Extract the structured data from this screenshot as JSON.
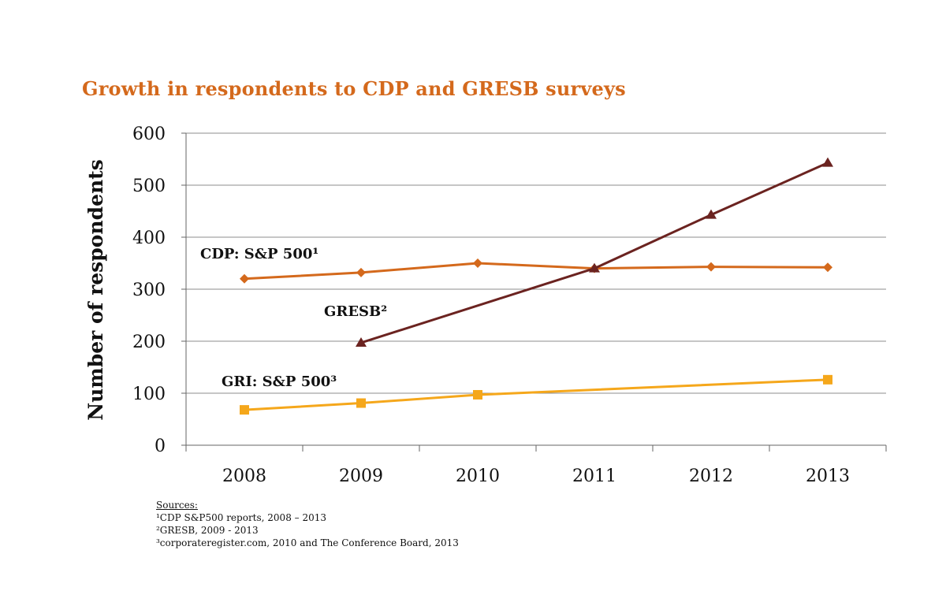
{
  "chart_data": {
    "type": "line",
    "title": "Growth in respondents to CDP and GRESB surveys",
    "ylabel": "Number of respondents",
    "xlabel": "",
    "categories": [
      "2008",
      "2009",
      "2010",
      "2011",
      "2012",
      "2013"
    ],
    "ylim": [
      0,
      600
    ],
    "yticks": [
      0,
      100,
      200,
      300,
      400,
      500,
      600
    ],
    "grid": true,
    "series": [
      {
        "name": "CDP: S&P 500¹",
        "color": "#d4691c",
        "marker": "diamond",
        "values": [
          320,
          332,
          350,
          340,
          343,
          342
        ]
      },
      {
        "name": "GRESB²",
        "color": "#6b2320",
        "marker": "triangle",
        "values": [
          null,
          197,
          null,
          340,
          443,
          543
        ]
      },
      {
        "name": "GRI: S&P 500³",
        "color": "#f5a71b",
        "marker": "square",
        "values": [
          68,
          81,
          97,
          null,
          null,
          126
        ]
      }
    ]
  },
  "sources": {
    "heading": "Sources:",
    "lines": [
      "¹CDP S&P500 reports, 2008 – 2013",
      "²GRESB, 2009 - 2013",
      "³corporateregister.com, 2010 and The Conference Board, 2013"
    ]
  },
  "colors": {
    "title": "#d4691c",
    "grid": "#8c8c8c",
    "axis": "#666666",
    "text": "#111111"
  }
}
